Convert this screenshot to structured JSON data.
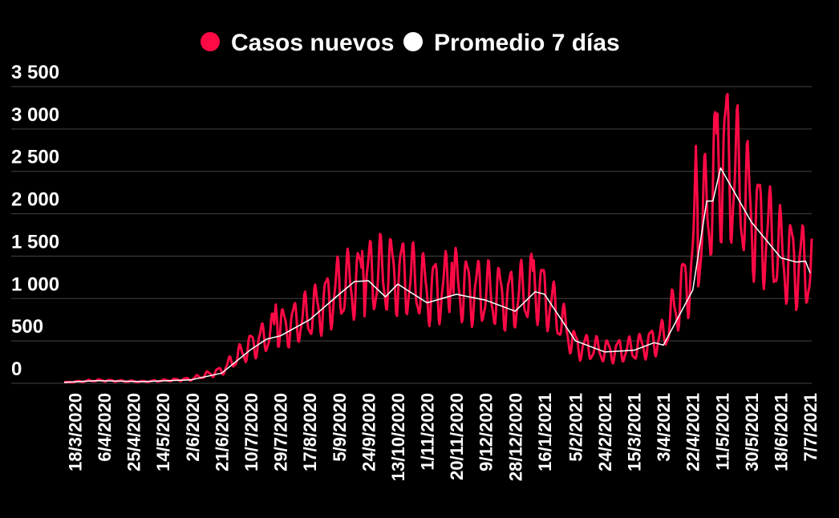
{
  "colors": {
    "background": "#000000",
    "daily": "#ff0a45",
    "average": "#ffffff",
    "grid": "#444444"
  },
  "chart_data": {
    "type": "line",
    "title": "",
    "xlabel": "",
    "ylabel": "",
    "ylim": [
      0,
      3500
    ],
    "grid": true,
    "legend_position": "top-center",
    "y_ticks": [
      0,
      500,
      1000,
      1500,
      2000,
      2500,
      3000,
      3500
    ],
    "y_tick_labels": [
      "0",
      "500",
      "1 000",
      "1 500",
      "2 000",
      "2 500",
      "3 000",
      "3 500"
    ],
    "x_range": [
      "2020-03-11",
      "2021-07-08"
    ],
    "x_tick_labels": [
      "18/3/2020",
      "6/4/2020",
      "25/4/2020",
      "14/5/2020",
      "2/6/2020",
      "21/6/2020",
      "10/7/2020",
      "29/7/2020",
      "17/8/2020",
      "5/9/2020",
      "24/9/2020",
      "13/10/2020",
      "1/11/2020",
      "20/11/2020",
      "9/12/2020",
      "28/12/2020",
      "16/1/2021",
      "5/2/2021",
      "24/2/2021",
      "15/3/2021",
      "3/4/2021",
      "22/4/2021",
      "11/5/2021",
      "30/5/2021",
      "18/6/2021",
      "7/7/2021"
    ],
    "x_tick_dates": [
      "2020-03-18",
      "2020-04-06",
      "2020-04-25",
      "2020-05-14",
      "2020-06-02",
      "2020-06-21",
      "2020-07-10",
      "2020-07-29",
      "2020-08-17",
      "2020-09-05",
      "2020-09-24",
      "2020-10-13",
      "2020-11-01",
      "2020-11-20",
      "2020-12-09",
      "2020-12-28",
      "2021-01-16",
      "2021-02-05",
      "2021-02-24",
      "2021-03-15",
      "2021-04-03",
      "2021-04-22",
      "2021-05-11",
      "2021-05-30",
      "2021-06-18",
      "2021-07-07"
    ],
    "series": [
      {
        "name": "Casos nuevos",
        "color": "#ff0a45",
        "points": [
          [
            "2020-03-11",
            10
          ],
          [
            "2020-04-01",
            35
          ],
          [
            "2020-05-01",
            20
          ],
          [
            "2020-06-01",
            50
          ],
          [
            "2020-06-21",
            150
          ],
          [
            "2020-07-10",
            450
          ],
          [
            "2020-07-29",
            650
          ],
          [
            "2020-08-17",
            800
          ],
          [
            "2020-09-05",
            1100
          ],
          [
            "2020-09-24",
            1250
          ],
          [
            "2020-10-13",
            1300
          ],
          [
            "2020-11-01",
            1100
          ],
          [
            "2020-11-20",
            1150
          ],
          [
            "2020-12-09",
            1050
          ],
          [
            "2020-12-28",
            1000
          ],
          [
            "2021-01-10",
            1150
          ],
          [
            "2021-01-16",
            1050
          ],
          [
            "2021-02-05",
            450
          ],
          [
            "2021-02-24",
            380
          ],
          [
            "2021-03-15",
            400
          ],
          [
            "2021-04-03",
            550
          ],
          [
            "2021-04-22",
            1400
          ],
          [
            "2021-05-11",
            2750
          ],
          [
            "2021-05-30",
            2000
          ],
          [
            "2021-06-18",
            1500
          ],
          [
            "2021-07-07",
            1350
          ]
        ],
        "peaks": [
          [
            "2020-07-26",
            930
          ],
          [
            "2020-09-20",
            1560
          ],
          [
            "2020-10-15",
            1540
          ],
          [
            "2020-11-17",
            1420
          ],
          [
            "2021-01-09",
            1450
          ],
          [
            "2021-04-24",
            2800
          ],
          [
            "2021-05-08",
            3180
          ],
          [
            "2021-05-15",
            2900
          ]
        ]
      },
      {
        "name": "Promedio 7 días",
        "color": "#ffffff",
        "points": [
          [
            "2020-03-11",
            10
          ],
          [
            "2020-04-01",
            30
          ],
          [
            "2020-05-01",
            20
          ],
          [
            "2020-06-01",
            40
          ],
          [
            "2020-06-21",
            120
          ],
          [
            "2020-07-10",
            400
          ],
          [
            "2020-07-20",
            520
          ],
          [
            "2020-07-29",
            560
          ],
          [
            "2020-08-17",
            750
          ],
          [
            "2020-09-05",
            1050
          ],
          [
            "2020-09-15",
            1200
          ],
          [
            "2020-09-24",
            1210
          ],
          [
            "2020-10-05",
            1020
          ],
          [
            "2020-10-13",
            1170
          ],
          [
            "2020-11-01",
            950
          ],
          [
            "2020-11-20",
            1050
          ],
          [
            "2020-12-09",
            980
          ],
          [
            "2020-12-28",
            850
          ],
          [
            "2021-01-10",
            1080
          ],
          [
            "2021-01-16",
            1050
          ],
          [
            "2021-02-05",
            500
          ],
          [
            "2021-02-24",
            370
          ],
          [
            "2021-03-15",
            390
          ],
          [
            "2021-03-28",
            480
          ],
          [
            "2021-04-03",
            450
          ],
          [
            "2021-04-22",
            1100
          ],
          [
            "2021-05-01",
            2150
          ],
          [
            "2021-05-05",
            2150
          ],
          [
            "2021-05-10",
            2540
          ],
          [
            "2021-05-30",
            1900
          ],
          [
            "2021-06-18",
            1480
          ],
          [
            "2021-06-28",
            1430
          ],
          [
            "2021-07-04",
            1440
          ],
          [
            "2021-07-07",
            1300
          ]
        ]
      }
    ]
  }
}
